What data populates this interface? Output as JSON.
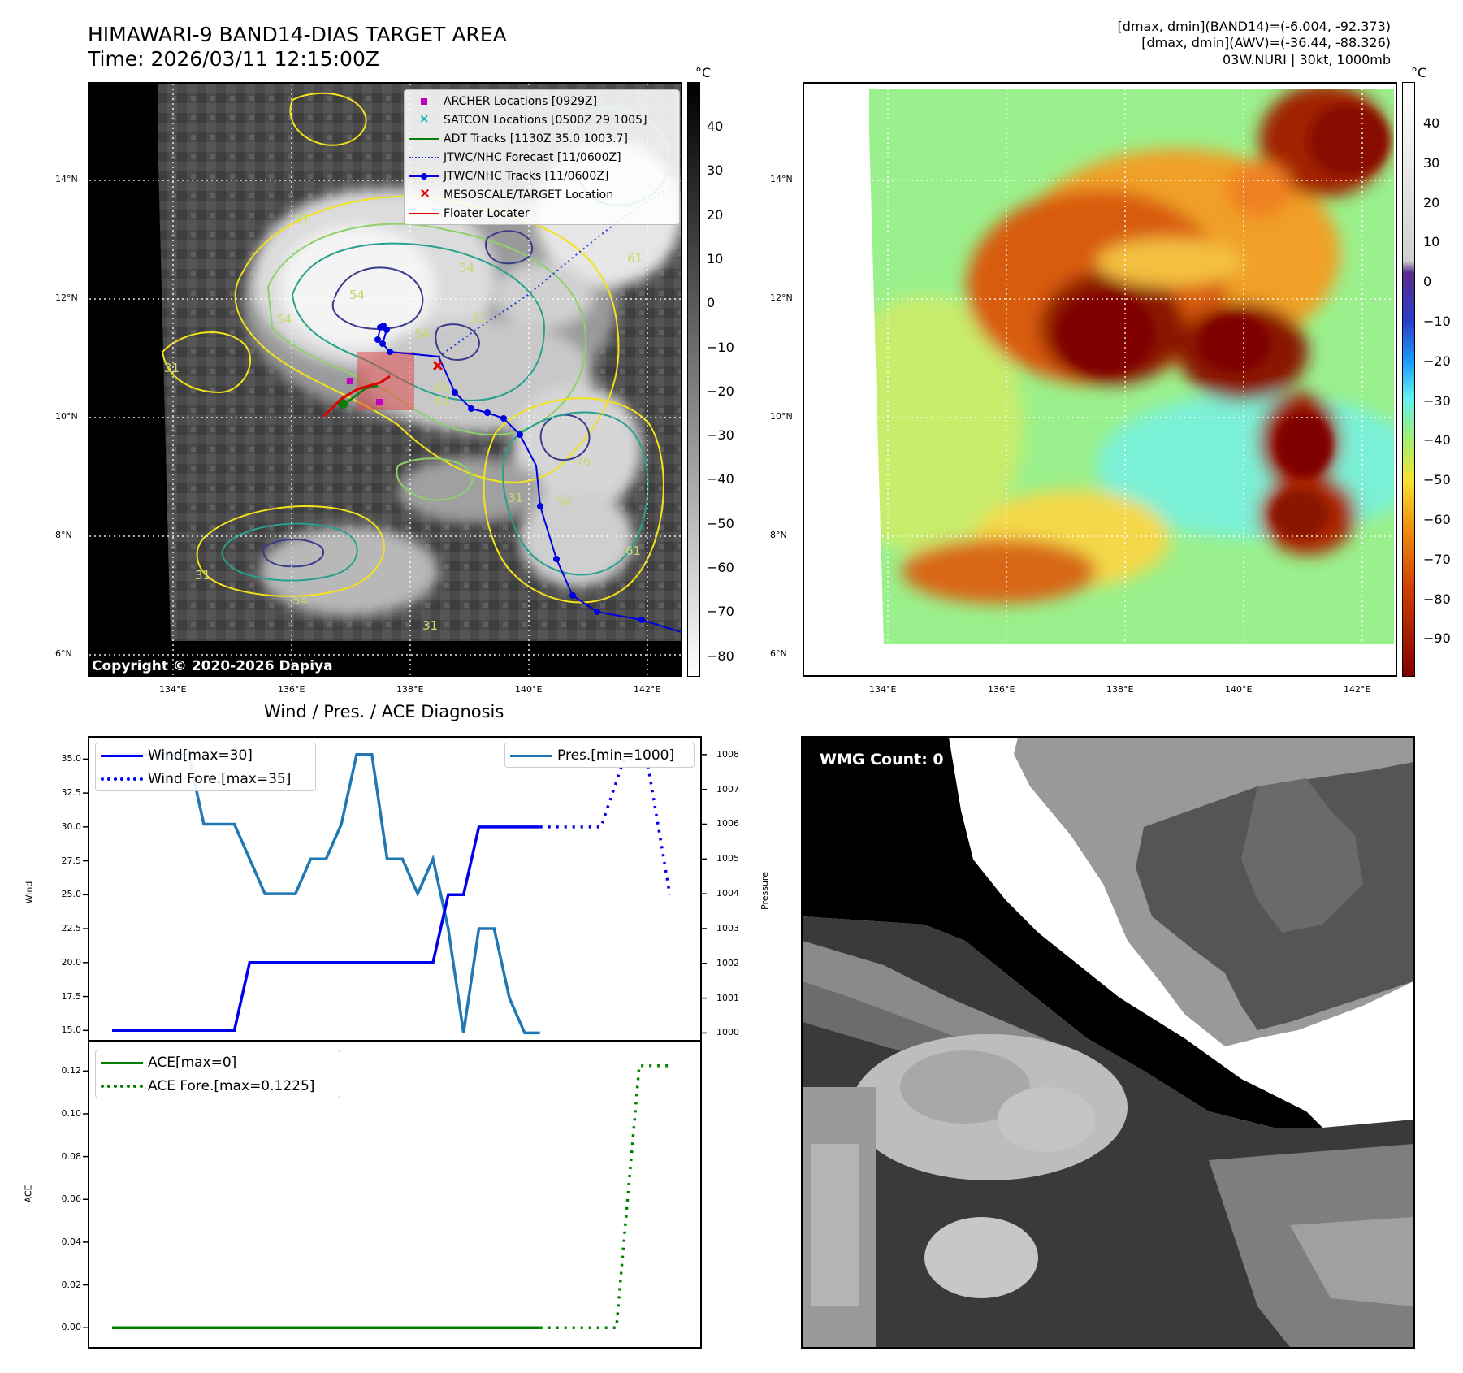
{
  "header": {
    "title_line1": "HIMAWARI-9 BAND14-DIAS TARGET AREA",
    "title_line2": "Time: 2026/03/11 12:15:00Z",
    "info_line1": "[dmax, dmin](BAND14)=(-6.004, -92.373)",
    "info_line2": "[dmax, dmin](AWV)=(-36.44, -88.326)",
    "info_line3": "03W.NURI | 30kt, 1000mb"
  },
  "map_left": {
    "colorbar_unit": "°C",
    "colorbar_ticks": [
      "40",
      "30",
      "20",
      "10",
      "0",
      "−10",
      "−20",
      "−30",
      "−40",
      "−50",
      "−60",
      "−70",
      "−80"
    ],
    "lat_labels": [
      "14°N",
      "12°N",
      "10°N",
      "8°N",
      "6°N"
    ],
    "lon_labels": [
      "134°E",
      "136°E",
      "138°E",
      "140°E",
      "142°E"
    ],
    "copyright": "Copyright © 2020-2026 Dapiya",
    "contour_labels": [
      "31",
      "54",
      "31",
      "54",
      "61",
      "54",
      "31",
      "54",
      "61",
      "-61",
      "-76",
      "31",
      "54",
      "54",
      "31",
      "31",
      "61"
    ],
    "legend": [
      {
        "label": "ARCHER Locations [0929Z]",
        "icon": "magenta-square-marker",
        "color": "#c000c0"
      },
      {
        "label": "SATCON Locations [0500Z 29 1005]",
        "icon": "cyan-x-marker",
        "color": "#14b4b4"
      },
      {
        "label": "ADT Tracks [1130Z 35.0 1003.7]",
        "icon": "green-line",
        "color": "#0a7d0a"
      },
      {
        "label": "JTWC/NHC Forecast [11/0600Z]",
        "icon": "blue-dotted-line",
        "color": "#1f3fd6"
      },
      {
        "label": "JTWC/NHC Tracks [11/0600Z]",
        "icon": "blue-line-dot-markers",
        "color": "#0000e0"
      },
      {
        "label": "MESOSCALE/TARGET Location",
        "icon": "red-x-marker",
        "color": "#e00000"
      },
      {
        "label": "Floater Locater",
        "icon": "red-line",
        "color": "#e00000"
      }
    ]
  },
  "map_right": {
    "colorbar_unit": "°C",
    "colorbar_ticks": [
      "40",
      "30",
      "20",
      "10",
      "0",
      "−10",
      "−20",
      "−30",
      "−40",
      "−50",
      "−60",
      "−70",
      "−80",
      "−90"
    ],
    "lat_labels": [
      "14°N",
      "12°N",
      "10°N",
      "8°N",
      "6°N"
    ],
    "lon_labels": [
      "134°E",
      "136°E",
      "138°E",
      "140°E",
      "142°E"
    ]
  },
  "diagnosis": {
    "title": "Wind / Pres. / ACE Diagnosis",
    "wind_ylabel": "Wind",
    "pressure_ylabel": "Pressure",
    "ace_ylabel": "ACE",
    "wind_ticks": [
      "35.0",
      "32.5",
      "30.0",
      "27.5",
      "25.0",
      "22.5",
      "20.0",
      "17.5",
      "15.0"
    ],
    "pressure_ticks": [
      "1008",
      "1007",
      "1006",
      "1005",
      "1004",
      "1003",
      "1002",
      "1001",
      "1000"
    ],
    "ace_ticks": [
      "0.12",
      "0.10",
      "0.08",
      "0.06",
      "0.04",
      "0.02",
      "0.00"
    ],
    "legend_wind": "Wind[max=30]",
    "legend_wind_fore": "Wind Fore.[max=35]",
    "legend_pres": "Pres.[min=1000]",
    "legend_ace": "ACE[max=0]",
    "legend_ace_fore": "ACE Fore.[max=0.1225]",
    "colors": {
      "wind": "#0000ee",
      "pres": "#1f77b4",
      "ace": "#007f00"
    }
  },
  "wmg": {
    "badge": "WMG Count: 0"
  },
  "chart_data": [
    {
      "type": "line",
      "title": "Wind / Pres. / ACE Diagnosis",
      "ylabel": "Wind",
      "ylim": [
        14.3,
        36.1
      ],
      "xlim": [
        0,
        37
      ],
      "series": [
        {
          "name": "Wind[max=30]",
          "style": "solid",
          "color": "#0000ee",
          "x": [
            0,
            8,
            9,
            21,
            22,
            23,
            24,
            25,
            26,
            27,
            28
          ],
          "y": [
            15,
            15,
            20,
            20,
            25,
            25,
            30,
            30,
            30,
            30,
            30
          ]
        },
        {
          "name": "Wind Fore.[max=35]",
          "style": "dotted",
          "color": "#0000ee",
          "x": [
            28,
            32,
            33.5,
            35,
            36.5
          ],
          "y": [
            30,
            30,
            35,
            35,
            25
          ]
        }
      ]
    },
    {
      "type": "line",
      "ylabel": "Pressure",
      "ylim": [
        999.8,
        1008.3
      ],
      "xlim": [
        0,
        37
      ],
      "series": [
        {
          "name": "Pres.[min=1000]",
          "style": "solid",
          "color": "#1f77b4",
          "x": [
            0,
            5,
            6,
            8,
            10,
            12,
            13,
            14,
            15,
            16,
            17,
            18,
            19,
            20,
            21,
            22,
            23,
            24,
            25,
            26,
            27,
            28
          ],
          "y": [
            1008,
            1008,
            1006,
            1006,
            1004,
            1004,
            1005,
            1005,
            1006,
            1008,
            1008,
            1005,
            1005,
            1004,
            1005,
            1003,
            1000,
            1003,
            1003,
            1001,
            1000,
            1000
          ]
        }
      ]
    },
    {
      "type": "line",
      "ylabel": "ACE",
      "ylim": [
        -0.006,
        0.13
      ],
      "xlim": [
        0,
        37
      ],
      "series": [
        {
          "name": "ACE[max=0]",
          "style": "solid",
          "color": "#007f00",
          "x": [
            0,
            28
          ],
          "y": [
            0,
            0
          ]
        },
        {
          "name": "ACE Fore.[max=0.1225]",
          "style": "dotted",
          "color": "#007f00",
          "x": [
            28,
            33,
            34.5,
            35,
            36.5
          ],
          "y": [
            0,
            0,
            0.1225,
            0.1225,
            0.1225
          ]
        }
      ]
    }
  ]
}
